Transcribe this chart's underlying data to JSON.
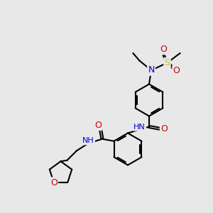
{
  "bg_color": "#e8e8e8",
  "bond_color": "#000000",
  "bond_lw": 1.5,
  "font_size": 9,
  "atom_colors": {
    "N": "#0000cc",
    "O": "#cc0000",
    "S": "#cccc00",
    "C": "#000000",
    "H": "#555555"
  },
  "fig_size": [
    3.0,
    3.0
  ],
  "dpi": 100
}
